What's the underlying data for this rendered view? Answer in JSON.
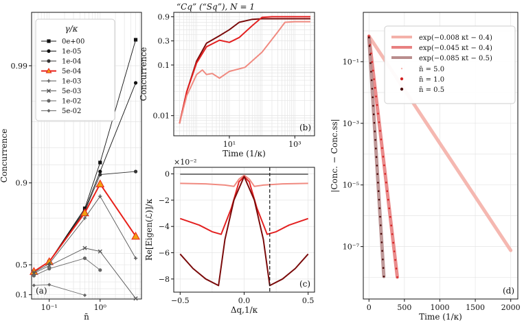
{
  "figure_title": "“Cq” (“Sq”), N = 1",
  "chart_data": [
    {
      "id": "a",
      "type": "line",
      "panel_label": "(a)",
      "xlabel": "n̄",
      "ylabel": "Concurrence",
      "xscale": "log",
      "yscale": "custom",
      "xlim": [
        0.045,
        6.5
      ],
      "xticks": [
        {
          "v": 0.1,
          "label": "10⁻¹"
        },
        {
          "v": 1,
          "label": "10⁰"
        }
      ],
      "yticks": [
        {
          "v": 0.1,
          "label": "0.1"
        },
        {
          "v": 0.5,
          "label": "0.5"
        },
        {
          "v": 0.9,
          "label": "0.9"
        },
        {
          "v": 0.99,
          "label": "0.99"
        }
      ],
      "grid": true,
      "legend": {
        "title": "γ/κ",
        "placement": "upper-left"
      },
      "series": [
        {
          "name": "0e+00",
          "color": "#111111",
          "marker": "square",
          "x": [
            0.05,
            0.1,
            0.5,
            1,
            5
          ],
          "y": [
            0.43,
            0.53,
            0.835,
            0.933,
            0.994
          ]
        },
        {
          "name": "1e-05",
          "color": "#111111",
          "marker": "circle",
          "x": [
            0.05,
            0.1,
            0.5,
            1,
            5
          ],
          "y": [
            0.43,
            0.53,
            0.83,
            0.92,
            0.986
          ]
        },
        {
          "name": "1e-04",
          "color": "#333333",
          "marker": "circle",
          "x": [
            0.05,
            0.1,
            0.5,
            1,
            5
          ],
          "y": [
            0.43,
            0.53,
            0.825,
            0.915,
            0.92
          ]
        },
        {
          "name": "5e-04",
          "color": "#e8201a",
          "marker": "triangle",
          "highlight": true,
          "x": [
            0.05,
            0.1,
            0.5,
            1,
            5
          ],
          "y": [
            0.43,
            0.53,
            0.82,
            0.898,
            0.715
          ]
        },
        {
          "name": "1e-03",
          "color": "#555555",
          "marker": "plus",
          "x": [
            0.05,
            0.1,
            0.5,
            1,
            5
          ],
          "y": [
            0.42,
            0.51,
            0.8,
            0.87,
            0.56
          ]
        },
        {
          "name": "5e-03",
          "color": "#555555",
          "marker": "cross",
          "x": [
            0.05,
            0.1,
            0.5,
            1,
            5
          ],
          "y": [
            0.41,
            0.49,
            0.64,
            0.615,
            0.03
          ]
        },
        {
          "name": "1e-02",
          "color": "#666666",
          "marker": "circle",
          "x": [
            0.05,
            0.1,
            0.5,
            1
          ],
          "y": [
            0.38,
            0.46,
            0.56,
            0.445
          ]
        },
        {
          "name": "5e-02",
          "color": "#666666",
          "marker": "diamond",
          "x": [
            0.05,
            0.1,
            0.5
          ],
          "y": [
            0.25,
            0.26,
            0.09
          ]
        }
      ]
    },
    {
      "id": "b",
      "type": "line",
      "panel_label": "(b)",
      "xlabel": "Time (1/κ)",
      "ylabel": "Concurrence",
      "xscale": "log",
      "yscale": "log",
      "xlim": [
        0.2,
        4000
      ],
      "ylim": [
        0.004,
        1.1
      ],
      "xticks": [
        {
          "v": 10,
          "label": "10¹"
        },
        {
          "v": 1000,
          "label": "10³"
        }
      ],
      "yticks": [
        {
          "v": 0.01,
          "label": "0.01"
        },
        {
          "v": 0.1,
          "label": "0.1"
        },
        {
          "v": 0.3,
          "label": "0.3"
        },
        {
          "v": 0.9,
          "label": "0.9"
        }
      ],
      "grid": true,
      "series": [
        {
          "color": "#7a0a0a",
          "x": [
            0.3,
            0.5,
            1,
            2,
            5,
            10,
            20,
            50,
            100,
            300,
            1000,
            3000
          ],
          "y": [
            0.007,
            0.03,
            0.12,
            0.27,
            0.38,
            0.5,
            0.7,
            0.8,
            0.82,
            0.82,
            0.82,
            0.82
          ]
        },
        {
          "color": "#e32020",
          "x": [
            0.3,
            0.5,
            1,
            2,
            5,
            10,
            20,
            50,
            100,
            200,
            300,
            1000,
            3000
          ],
          "y": [
            0.007,
            0.03,
            0.11,
            0.23,
            0.31,
            0.28,
            0.35,
            0.6,
            0.88,
            0.9,
            0.9,
            0.9,
            0.9
          ]
        },
        {
          "color": "#f08a80",
          "x": [
            0.3,
            0.5,
            1,
            1.5,
            2,
            3,
            5,
            10,
            30,
            100,
            300,
            500,
            1000,
            3000
          ],
          "y": [
            0.007,
            0.025,
            0.065,
            0.08,
            0.065,
            0.068,
            0.055,
            0.075,
            0.09,
            0.18,
            0.45,
            0.7,
            0.72,
            0.72
          ]
        }
      ]
    },
    {
      "id": "c",
      "type": "line",
      "panel_label": "(c)",
      "xlabel": "Δq,1/κ",
      "ylabel": "Re[Eigen(ℒ)]/κ",
      "scale_note": "×10⁻²",
      "xlim": [
        -0.55,
        0.55
      ],
      "ylim": [
        -9,
        0.5
      ],
      "xticks": [
        {
          "v": -0.5,
          "label": "−0.5"
        },
        {
          "v": 0,
          "label": "0.0"
        },
        {
          "v": 0.5,
          "label": "0.5"
        }
      ],
      "yticks": [
        {
          "v": 0,
          "label": "0"
        },
        {
          "v": -2,
          "label": "−2"
        },
        {
          "v": -4,
          "label": "−4"
        },
        {
          "v": -6,
          "label": "−6"
        },
        {
          "v": -8,
          "label": "−8"
        }
      ],
      "vline_x": 0.2,
      "grid": true,
      "series": [
        {
          "color": "#777777",
          "x": [
            -0.5,
            0.5
          ],
          "y": [
            -0.02,
            -0.02
          ]
        },
        {
          "color": "#f08a80",
          "x": [
            -0.5,
            -0.3,
            -0.15,
            -0.08,
            -0.04,
            0,
            0.04,
            0.08,
            0.15,
            0.3,
            0.5
          ],
          "y": [
            -0.72,
            -0.76,
            -0.85,
            -0.95,
            -0.4,
            -0.1,
            -0.4,
            -0.95,
            -0.85,
            -0.76,
            -0.72
          ]
        },
        {
          "color": "#e32020",
          "x": [
            -0.5,
            -0.35,
            -0.25,
            -0.18,
            -0.1,
            -0.04,
            0,
            0.04,
            0.1,
            0.18,
            0.25,
            0.35,
            0.5
          ],
          "y": [
            -3.4,
            -3.9,
            -4.4,
            -4.6,
            -2.6,
            -0.6,
            -0.2,
            -0.6,
            -2.6,
            -4.6,
            -4.4,
            -3.9,
            -3.4
          ]
        },
        {
          "color": "#7a0a0a",
          "x": [
            -0.5,
            -0.4,
            -0.3,
            -0.2,
            -0.15,
            -0.08,
            0,
            0.08,
            0.15,
            0.2,
            0.3,
            0.4,
            0.5
          ],
          "y": [
            -6.1,
            -7.2,
            -8.0,
            -8.5,
            -5.0,
            -2.0,
            -0.2,
            -2.0,
            -5.0,
            -8.5,
            -8.0,
            -7.2,
            -6.1
          ]
        }
      ]
    },
    {
      "id": "d",
      "type": "scatter",
      "panel_label": "(d)",
      "xlabel": "Time (1/κ)",
      "ylabel": "|Conc. − Conc.ss|",
      "xscale": "linear",
      "yscale": "log",
      "xlim": [
        -80,
        2100
      ],
      "ylim_exp10": [
        -8.7,
        0.6
      ],
      "xticks": [
        {
          "v": 0,
          "label": "0"
        },
        {
          "v": 500,
          "label": "500"
        },
        {
          "v": 1000,
          "label": "1000"
        },
        {
          "v": 1500,
          "label": "1500"
        },
        {
          "v": 2000,
          "label": "2000"
        }
      ],
      "yticks": [
        {
          "v": -1,
          "label": "10⁻¹"
        },
        {
          "v": -3,
          "label": "10⁻³"
        },
        {
          "v": -5,
          "label": "10⁻⁵"
        },
        {
          "v": -7,
          "label": "10⁻⁷"
        }
      ],
      "grid": true,
      "fits": [
        {
          "label": "exp(−0.008 κt − 0.4)",
          "color": "#f4b1a9",
          "rate": 0.008,
          "offset": -0.4,
          "x_end": 2000
        },
        {
          "label": "exp(−0.045 κt − 0.4)",
          "color": "#e88080",
          "rate": 0.045,
          "offset": -0.4,
          "x_end": 400
        },
        {
          "label": "exp(−0.085 κt − 0.5)",
          "color": "#b98d8d",
          "rate": 0.085,
          "offset": -0.5,
          "x_end": 210
        }
      ],
      "series": [
        {
          "name": "n̄ = 5.0",
          "color": "#f7b7b0",
          "x_end": 2000,
          "rate": 0.008,
          "offset": -0.4
        },
        {
          "name": "n̄ = 1.0",
          "color": "#d42222",
          "x_end": 400,
          "rate": 0.045,
          "offset": -0.4
        },
        {
          "name": "n̄ = 0.5",
          "color": "#4a0808",
          "x_end": 210,
          "rate": 0.085,
          "offset": -0.5
        }
      ],
      "legend": {
        "placement": "upper-right"
      }
    }
  ]
}
